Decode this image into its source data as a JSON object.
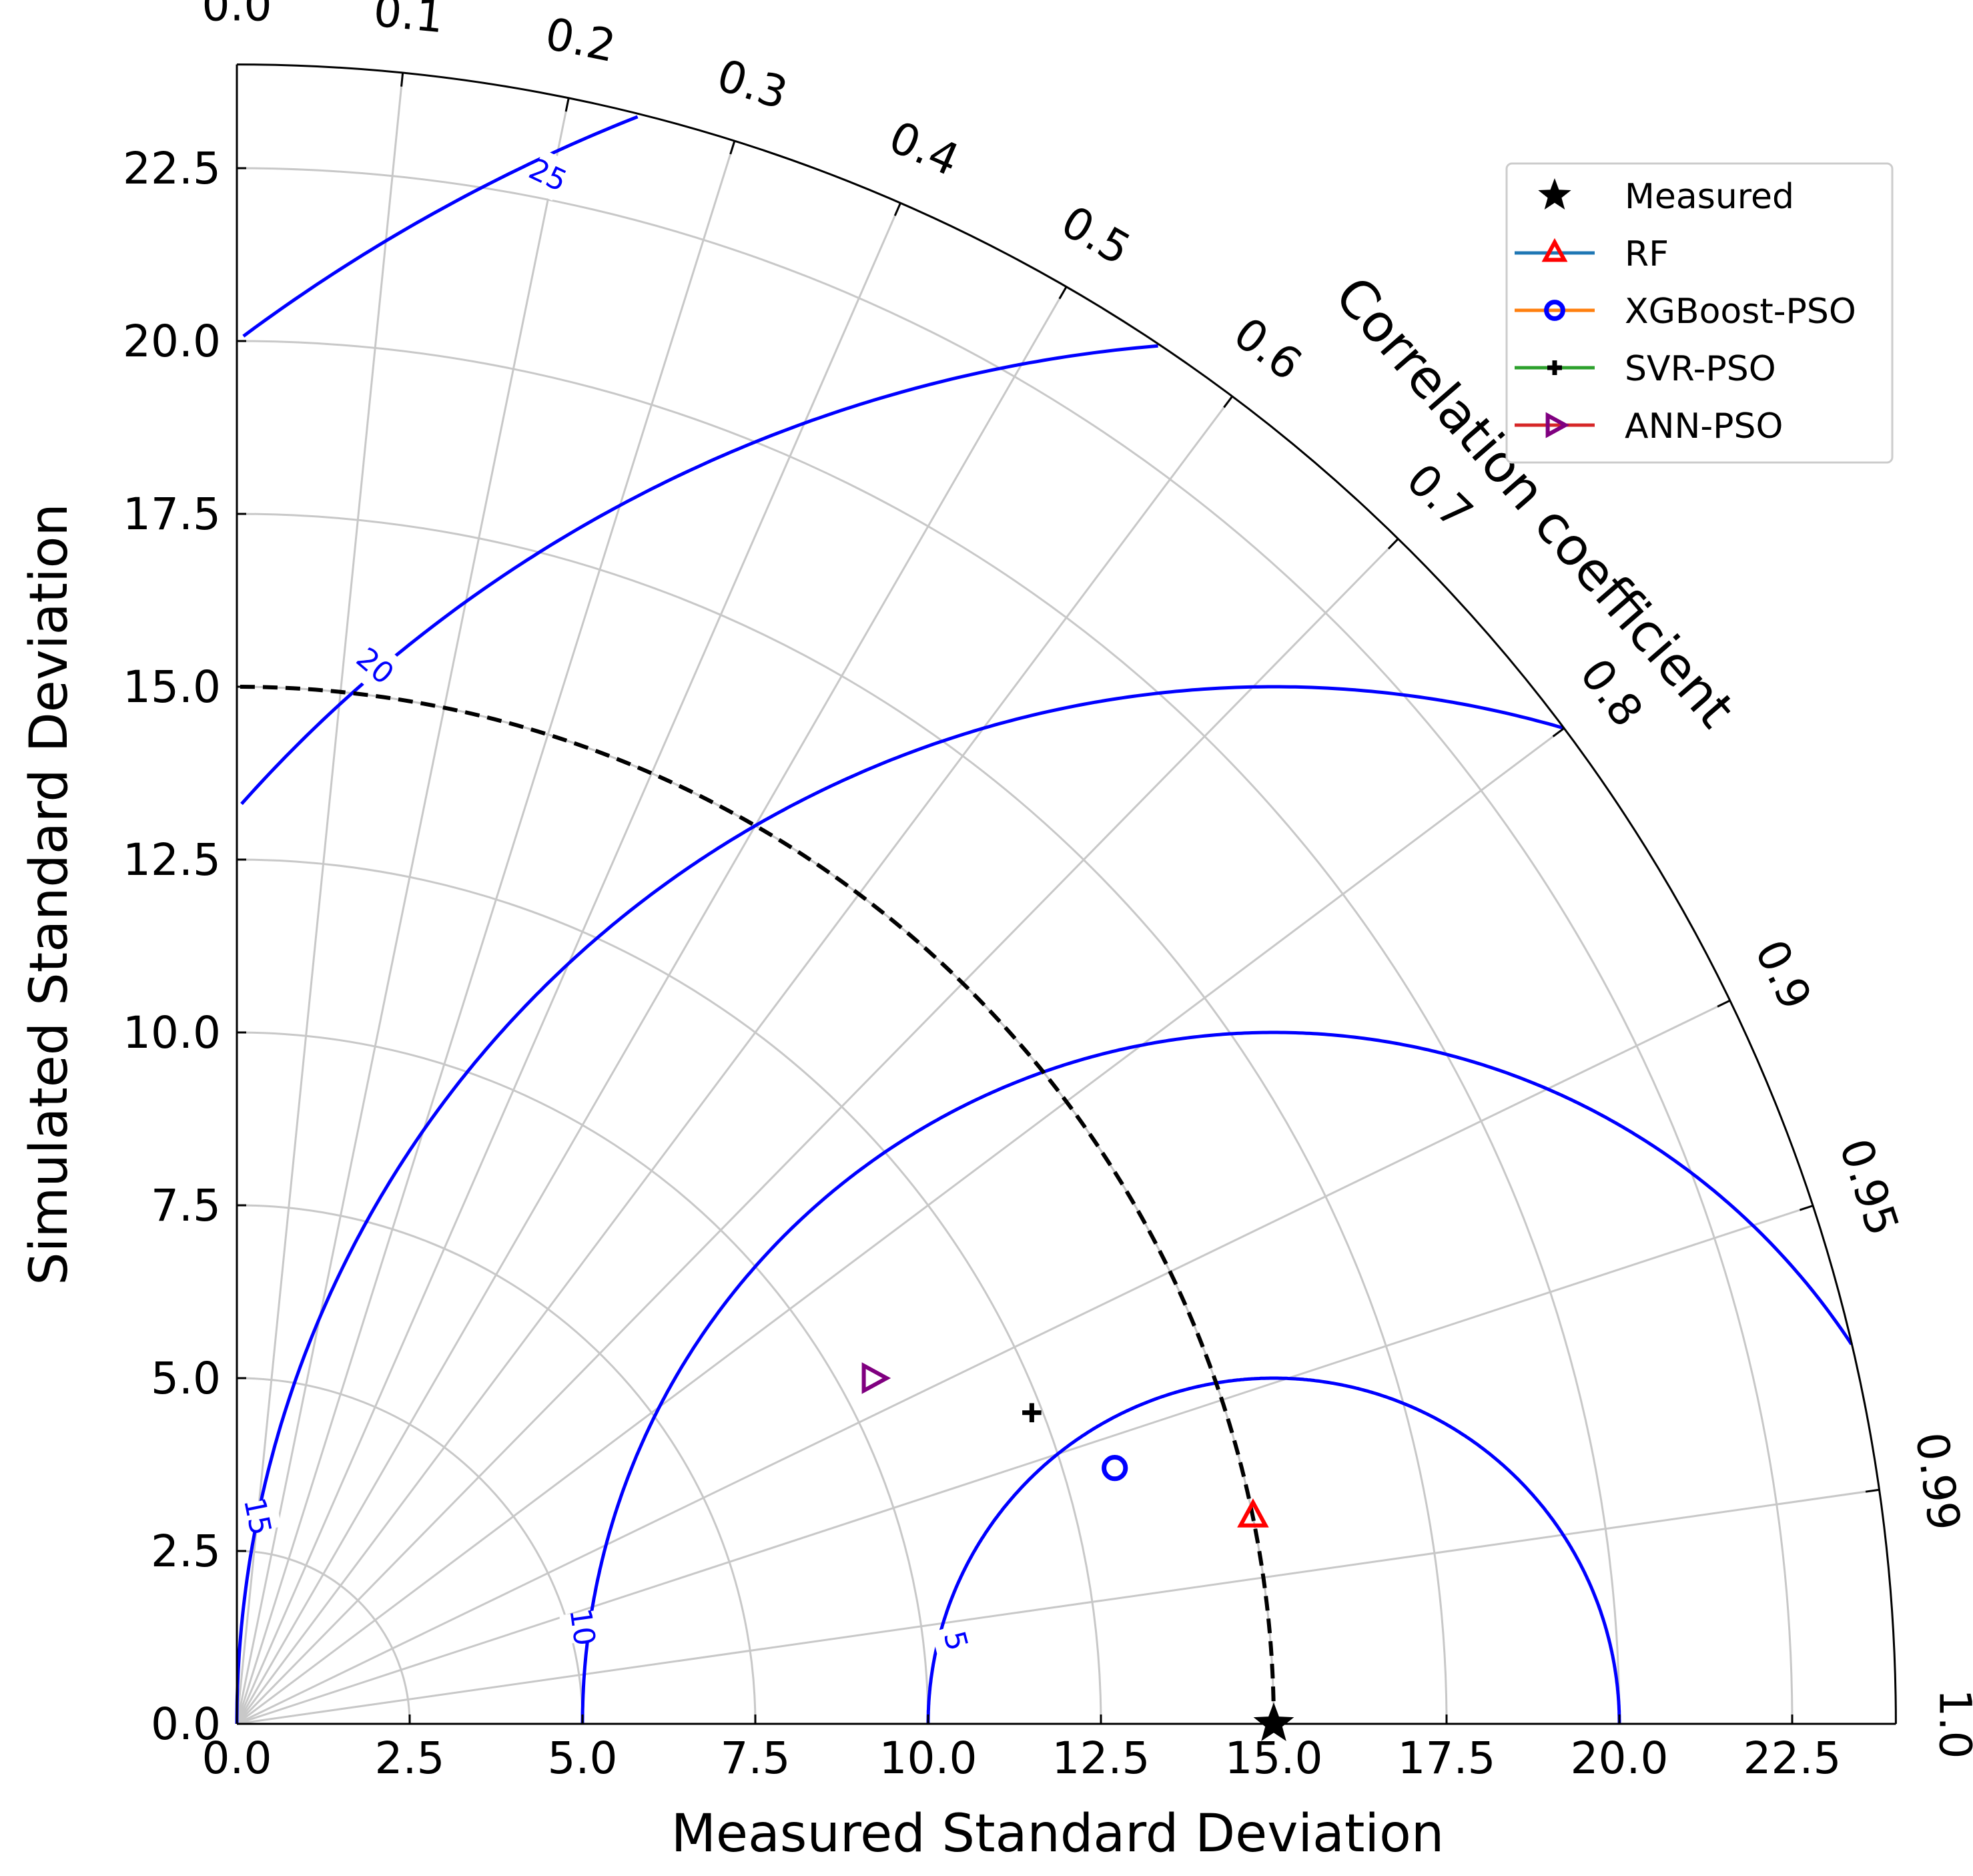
{
  "chart_data": {
    "type": "scatter",
    "subtype": "taylor_diagram",
    "xlabel": "Measured Standard Deviation",
    "ylabel": "Simulated Standard Deviation",
    "angular_label": "Correlation coefficient",
    "xlim": [
      0,
      24
    ],
    "ylim": [
      0,
      24
    ],
    "x_ticks": [
      {
        "value": 0.0,
        "label": "0.0"
      },
      {
        "value": 2.5,
        "label": "2.5"
      },
      {
        "value": 5.0,
        "label": "5.0"
      },
      {
        "value": 7.5,
        "label": "7.5"
      },
      {
        "value": 10.0,
        "label": "10.0"
      },
      {
        "value": 12.5,
        "label": "12.5"
      },
      {
        "value": 15.0,
        "label": "15.0"
      },
      {
        "value": 17.5,
        "label": "17.5"
      },
      {
        "value": 20.0,
        "label": "20.0"
      },
      {
        "value": 22.5,
        "label": "22.5"
      }
    ],
    "y_ticks": [
      {
        "value": 0.0,
        "label": "0.0"
      },
      {
        "value": 2.5,
        "label": "2.5"
      },
      {
        "value": 5.0,
        "label": "5.0"
      },
      {
        "value": 7.5,
        "label": "7.5"
      },
      {
        "value": 10.0,
        "label": "10.0"
      },
      {
        "value": 12.5,
        "label": "12.5"
      },
      {
        "value": 15.0,
        "label": "15.0"
      },
      {
        "value": 17.5,
        "label": "17.5"
      },
      {
        "value": 20.0,
        "label": "20.0"
      },
      {
        "value": 22.5,
        "label": "22.5"
      }
    ],
    "correlation_ticks": [
      {
        "value": 0.0,
        "label": "0.0"
      },
      {
        "value": 0.1,
        "label": "0.1"
      },
      {
        "value": 0.2,
        "label": "0.2"
      },
      {
        "value": 0.3,
        "label": "0.3"
      },
      {
        "value": 0.4,
        "label": "0.4"
      },
      {
        "value": 0.5,
        "label": "0.5"
      },
      {
        "value": 0.6,
        "label": "0.6"
      },
      {
        "value": 0.7,
        "label": "0.7"
      },
      {
        "value": 0.8,
        "label": "0.8"
      },
      {
        "value": 0.9,
        "label": "0.9"
      },
      {
        "value": 0.95,
        "label": "0.95"
      },
      {
        "value": 0.99,
        "label": "0.99"
      },
      {
        "value": 1.0,
        "label": "1.0"
      }
    ],
    "rms_contours": [
      {
        "value": 5,
        "label": "5"
      },
      {
        "value": 10,
        "label": "10"
      },
      {
        "value": 15,
        "label": "15"
      },
      {
        "value": 20,
        "label": "20"
      },
      {
        "value": 25,
        "label": "25"
      }
    ],
    "reference_std": 15.0,
    "grid": true,
    "legend": {
      "placement": "top-right",
      "entries": [
        {
          "name": "Measured",
          "marker": "star",
          "line_color": "",
          "marker_color": "#000000"
        },
        {
          "name": "RF",
          "marker": "triangle-up",
          "line_color": "#1f77b4",
          "marker_color": "#ff0000"
        },
        {
          "name": "XGBoost-PSO",
          "marker": "circle",
          "line_color": "#ff7f0e",
          "marker_color": "#0000ff"
        },
        {
          "name": "SVR-PSO",
          "marker": "plus",
          "line_color": "#2ca02c",
          "marker_color": "#000000"
        },
        {
          "name": "ANN-PSO",
          "marker": "triangle-right",
          "line_color": "#d62728",
          "marker_color": "#800080"
        }
      ]
    },
    "series": [
      {
        "name": "Measured",
        "x": 15.0,
        "y": 0.0,
        "marker": "star",
        "color": "#000000"
      },
      {
        "name": "RF",
        "x": 14.7,
        "y": 3.0,
        "marker": "triangle-up",
        "color": "#ff0000"
      },
      {
        "name": "XGBoost-PSO",
        "x": 12.7,
        "y": 3.7,
        "marker": "circle",
        "color": "#0000ff"
      },
      {
        "name": "SVR-PSO",
        "x": 11.5,
        "y": 4.5,
        "marker": "plus",
        "color": "#000000"
      },
      {
        "name": "ANN-PSO",
        "x": 9.2,
        "y": 5.0,
        "marker": "triangle-right",
        "color": "#800080"
      }
    ]
  }
}
